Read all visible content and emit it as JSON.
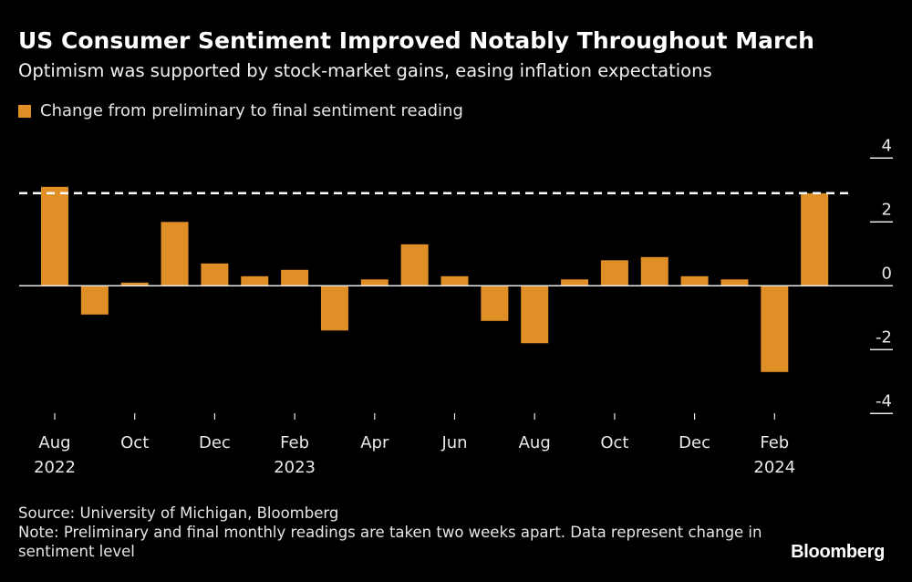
{
  "chart_data": {
    "type": "bar",
    "title": "US Consumer Sentiment Improved Notably Throughout March",
    "subtitle": "Optimism was supported by stock-market gains, easing inflation expectations",
    "legend": [
      {
        "name": "Change from preliminary to final sentiment reading",
        "color": "#E08E26"
      }
    ],
    "legend_placement": "top-left",
    "categories": [
      "Aug 2022",
      "Sep 2022",
      "Oct 2022",
      "Nov 2022",
      "Dec 2022",
      "Jan 2023",
      "Feb 2023",
      "Mar 2023",
      "Apr 2023",
      "May 2023",
      "Jun 2023",
      "Jul 2023",
      "Aug 2023",
      "Sep 2023",
      "Oct 2023",
      "Nov 2023",
      "Dec 2023",
      "Jan 2024",
      "Feb 2024",
      "Mar 2024"
    ],
    "series": [
      {
        "name": "Change from preliminary to final sentiment reading",
        "values": [
          3.1,
          -0.9,
          0.1,
          2.0,
          0.7,
          0.3,
          0.5,
          -1.4,
          0.2,
          1.3,
          0.3,
          -1.1,
          -1.8,
          0.2,
          0.8,
          0.9,
          0.3,
          0.2,
          -2.7,
          2.9
        ]
      }
    ],
    "reference_line": {
      "value": 2.9,
      "style": "dashed",
      "color": "#ffffff"
    },
    "ylim": [
      -4,
      4
    ],
    "y_ticks": [
      "4",
      "2",
      "0",
      "-2",
      "-4"
    ],
    "y_tick_values": [
      4,
      2,
      0,
      -2,
      -4
    ],
    "y_axis_side": "right",
    "x_tick_labels": [
      {
        "index": 0,
        "month": "Aug",
        "year": "2022"
      },
      {
        "index": 2,
        "month": "Oct",
        "year": ""
      },
      {
        "index": 4,
        "month": "Dec",
        "year": ""
      },
      {
        "index": 6,
        "month": "Feb",
        "year": "2023"
      },
      {
        "index": 8,
        "month": "Apr",
        "year": ""
      },
      {
        "index": 10,
        "month": "Jun",
        "year": ""
      },
      {
        "index": 12,
        "month": "Aug",
        "year": ""
      },
      {
        "index": 14,
        "month": "Oct",
        "year": ""
      },
      {
        "index": 16,
        "month": "Dec",
        "year": ""
      },
      {
        "index": 18,
        "month": "Feb",
        "year": "2024"
      }
    ],
    "grid": false,
    "bar_color": "#E08E26",
    "background": "#000000"
  },
  "footer": {
    "source": "Source: University of Michigan, Bloomberg",
    "note": "Note: Preliminary and final monthly readings are taken two weeks apart. Data represent change in sentiment level",
    "logo": "Bloomberg"
  }
}
